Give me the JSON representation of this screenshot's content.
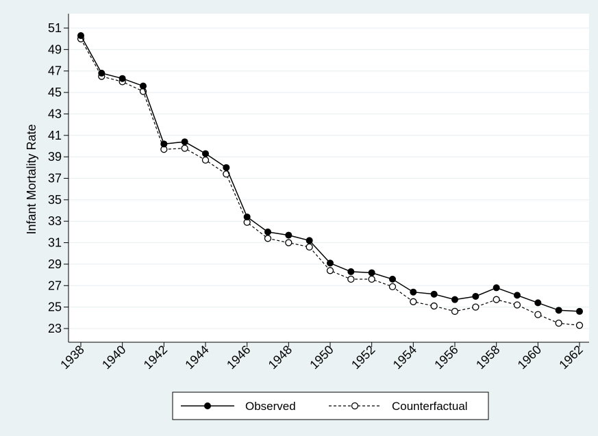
{
  "chart_data": {
    "type": "line",
    "title": "",
    "xlabel": "",
    "ylabel": "Infant Mortality Rate",
    "x": [
      1938,
      1939,
      1940,
      1941,
      1942,
      1943,
      1944,
      1945,
      1946,
      1947,
      1948,
      1949,
      1950,
      1951,
      1952,
      1953,
      1954,
      1955,
      1956,
      1957,
      1958,
      1959,
      1960,
      1961,
      1962
    ],
    "xlim": [
      1938,
      1962
    ],
    "ylim": [
      23,
      51
    ],
    "x_ticks": [
      "1938",
      "1940",
      "1942",
      "1944",
      "1946",
      "1948",
      "1950",
      "1952",
      "1954",
      "1956",
      "1958",
      "1960",
      "1962"
    ],
    "y_ticks": [
      "23",
      "25",
      "27",
      "29",
      "31",
      "33",
      "35",
      "37",
      "39",
      "41",
      "43",
      "45",
      "47",
      "49",
      "51"
    ],
    "grid": true,
    "legend_position": "bottom",
    "series": [
      {
        "name": "Observed",
        "style": "solid",
        "marker": "filled-circle",
        "color": "#000000",
        "values": [
          50.3,
          46.8,
          46.3,
          45.6,
          40.2,
          40.4,
          39.3,
          38.0,
          33.4,
          32.0,
          31.7,
          31.2,
          29.1,
          28.3,
          28.2,
          27.6,
          26.4,
          26.2,
          25.7,
          26.0,
          26.8,
          26.1,
          25.4,
          24.7,
          24.6
        ]
      },
      {
        "name": "Counterfactual",
        "style": "dashed",
        "marker": "hollow-circle",
        "color": "#000000",
        "values": [
          50.0,
          46.5,
          46.0,
          45.1,
          39.7,
          39.8,
          38.7,
          37.4,
          32.9,
          31.4,
          31.0,
          30.6,
          28.4,
          27.6,
          27.6,
          26.9,
          25.5,
          25.1,
          24.6,
          25.0,
          25.7,
          25.2,
          24.3,
          23.5,
          23.3
        ]
      }
    ],
    "colors": {
      "background": "#eaf2f3",
      "plot_area": "#ffffff",
      "grid": "#e6eef0"
    }
  }
}
